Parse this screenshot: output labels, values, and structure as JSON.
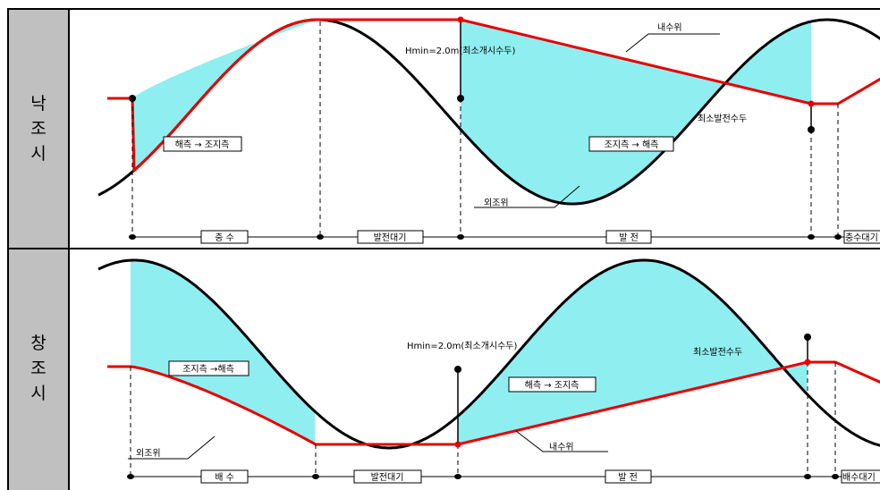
{
  "colors": {
    "background": "#ffffff",
    "side_panel": "#c0c0c0",
    "fill_area": "#8feef0",
    "inner_water_line": "#e60000",
    "outer_tide_line": "#000000"
  },
  "top_panel": {
    "side_label": [
      "낙",
      "조",
      "시"
    ],
    "hmin_label": "Hmin=2.0m(최소개시수두)",
    "inner_level_label": "내수위",
    "outer_level_label": "외조위",
    "min_head_label": "최소발전수두",
    "flow_box_left": "해측 → 조지측",
    "flow_box_right": "조지측 → 해측",
    "timeline": [
      "충 수",
      "발전대기",
      "발 전",
      "충수대기"
    ]
  },
  "bottom_panel": {
    "side_label": [
      "창",
      "조",
      "시"
    ],
    "hmin_label": "Hmin=2.0m(최소개시수두)",
    "inner_level_label": "내수위",
    "outer_level_label": "외조위",
    "min_head_label": "최소발전수두",
    "flow_box_left": "조지측 →해측",
    "flow_box_right": "해측 → 조지측",
    "timeline": [
      "배 수",
      "발전대기",
      "발 전",
      "배수대기"
    ]
  }
}
